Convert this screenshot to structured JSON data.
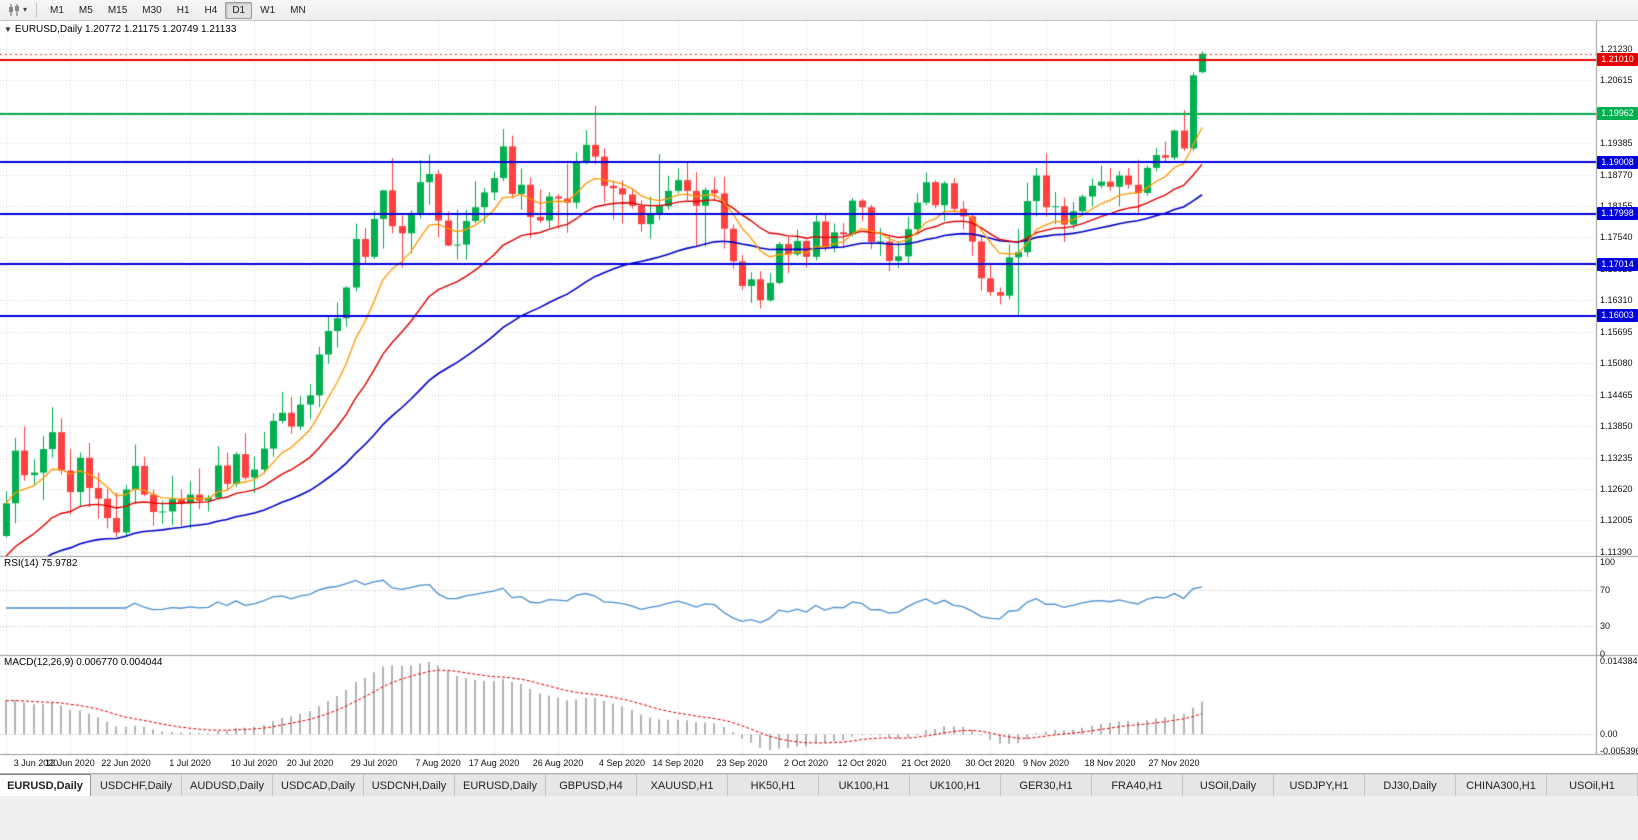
{
  "toolbar": {
    "timeframes": [
      "M1",
      "M5",
      "M15",
      "M30",
      "H1",
      "H4",
      "D1",
      "W1",
      "MN"
    ],
    "active_timeframe": "D1"
  },
  "main_chart": {
    "title": "EURUSD,Daily",
    "ohlc": "1.20772 1.21175 1.20749 1.21133",
    "open": "1.20772",
    "high": "1.21175",
    "low": "1.20749",
    "close": "1.21133"
  },
  "rsi_pane": {
    "label": "RSI(14)",
    "value": "75.9782",
    "scale": [
      "100",
      "70",
      "30",
      "0"
    ]
  },
  "macd_pane": {
    "label": "MACD(12,26,9)",
    "value": "0.006770 0.004044",
    "scale": [
      "0.014384",
      "0.00",
      "-0.005396"
    ]
  },
  "price_axis": {
    "ticks": [
      "1.21230",
      "1.20615",
      "1.20000",
      "1.19385",
      "1.18770",
      "1.18155",
      "1.17540",
      "1.16925",
      "1.16310",
      "1.15695",
      "1.15080",
      "1.14465",
      "1.13850",
      "1.13235",
      "1.12620",
      "1.12005",
      "1.11390"
    ]
  },
  "date_axis": {
    "labels": [
      "3 Jun 2020",
      "12 Jun 2020",
      "22 Jun 2020",
      "1 Jul 2020",
      "10 Jul 2020",
      "20 Jul 2020",
      "29 Jul 2020",
      "7 Aug 2020",
      "17 Aug 2020",
      "26 Aug 2020",
      "4 Sep 2020",
      "14 Sep 2020",
      "23 Sep 2020",
      "2 Oct 2020",
      "12 Oct 2020",
      "21 Oct 2020",
      "30 Oct 2020",
      "9 Nov 2020",
      "18 Nov 2020",
      "27 Nov 2020"
    ]
  },
  "levels": [
    {
      "label": "1.21010",
      "value": 1.2101,
      "color": "#e80000"
    },
    {
      "label": "1.19962",
      "value": 1.19962,
      "color": "#00b050"
    },
    {
      "label": "1.19008",
      "value": 1.19008,
      "color": "#0000dd"
    },
    {
      "label": "1.17998",
      "value": 1.17998,
      "color": "#0000dd"
    },
    {
      "label": "1.17014",
      "value": 1.17014,
      "color": "#0000dd"
    },
    {
      "label": "1.16003",
      "value": 1.16003,
      "color": "#0000dd"
    }
  ],
  "tabs": [
    {
      "label": "EURUSD,Daily",
      "active": true
    },
    {
      "label": "USDCHF,Daily"
    },
    {
      "label": "AUDUSD,Daily"
    },
    {
      "label": "USDCAD,Daily"
    },
    {
      "label": "USDCNH,Daily"
    },
    {
      "label": "EURUSD,Daily"
    },
    {
      "label": "GBPUSD,H4"
    },
    {
      "label": "XAUUSD,H1"
    },
    {
      "label": "HK50,H1"
    },
    {
      "label": "UK100,H1"
    },
    {
      "label": "UK100,H1"
    },
    {
      "label": "GER30,H1"
    },
    {
      "label": "FRA40,H1"
    },
    {
      "label": "USOil,Daily"
    },
    {
      "label": "USDJPY,H1"
    },
    {
      "label": "DJ30,Daily"
    },
    {
      "label": "CHINA300,H1"
    },
    {
      "label": "USOil,H1"
    }
  ],
  "colors": {
    "bull": "#00b050",
    "bear": "#ff4040",
    "ma_fast": "#ff9900",
    "ma_mid": "#e00000",
    "ma_slow": "#0000cc",
    "rsi_line": "#4d8fd1",
    "macd_hist": "#b4b4b4",
    "macd_signal": "#e00000",
    "grid": "#d8d8d8",
    "pane_border": "#9a9a9a",
    "bid": "#ff3030"
  },
  "chart_data": {
    "type": "candlestick",
    "symbol": "EURUSD",
    "timeframe": "Daily",
    "last_ohlc": {
      "open": 1.20772,
      "high": 1.21175,
      "low": 1.20749,
      "close": 1.21133
    },
    "bid": 1.21133,
    "horizontal_lines": [
      1.2101,
      1.19962,
      1.19008,
      1.17998,
      1.17014,
      1.16003
    ],
    "rsi": {
      "period": 14,
      "levels": [
        70,
        30
      ],
      "current": 75.9782
    },
    "macd": {
      "fast": 12,
      "slow": 26,
      "signal": 9,
      "current": 0.00677,
      "signal_current": 0.004044,
      "max": 0.014384,
      "min": -0.005396
    },
    "moving_averages": [
      {
        "period": 9,
        "color_key": "ma_fast",
        "seed": null
      },
      {
        "period": 21,
        "color_key": "ma_mid",
        "seed": 1.112
      },
      {
        "period": 45,
        "color_key": "ma_slow",
        "seed": 1.108
      }
    ],
    "tick_indices": [
      0,
      7,
      13,
      20,
      27,
      33,
      40,
      47,
      53,
      60,
      67,
      73,
      80,
      87,
      93,
      100,
      107,
      113,
      120,
      127
    ],
    "candles": [
      [
        1.117,
        1.1258,
        1.1167,
        1.1234
      ],
      [
        1.1234,
        1.1362,
        1.1195,
        1.1337
      ],
      [
        1.1337,
        1.1384,
        1.1278,
        1.1289
      ],
      [
        1.1289,
        1.132,
        1.1268,
        1.1294
      ],
      [
        1.1294,
        1.1366,
        1.124,
        1.134
      ],
      [
        1.134,
        1.1422,
        1.1323,
        1.1373
      ],
      [
        1.1373,
        1.14,
        1.129,
        1.1298
      ],
      [
        1.1298,
        1.134,
        1.1212,
        1.1256
      ],
      [
        1.1256,
        1.1333,
        1.1227,
        1.1323
      ],
      [
        1.1323,
        1.1352,
        1.1226,
        1.1264
      ],
      [
        1.1264,
        1.1294,
        1.1204,
        1.1243
      ],
      [
        1.1243,
        1.1262,
        1.1185,
        1.1205
      ],
      [
        1.1205,
        1.1255,
        1.1168,
        1.1177
      ],
      [
        1.1177,
        1.127,
        1.1168,
        1.1261
      ],
      [
        1.1261,
        1.1349,
        1.1232,
        1.1307
      ],
      [
        1.1307,
        1.1325,
        1.1248,
        1.1251
      ],
      [
        1.1251,
        1.1261,
        1.119,
        1.1217
      ],
      [
        1.1217,
        1.1239,
        1.1194,
        1.1218
      ],
      [
        1.1218,
        1.1288,
        1.1191,
        1.1242
      ],
      [
        1.1242,
        1.1261,
        1.1189,
        1.1234
      ],
      [
        1.1234,
        1.1277,
        1.1184,
        1.1251
      ],
      [
        1.1251,
        1.1302,
        1.1223,
        1.1239
      ],
      [
        1.1239,
        1.125,
        1.1218,
        1.1245
      ],
      [
        1.1245,
        1.1346,
        1.1241,
        1.1308
      ],
      [
        1.1308,
        1.1333,
        1.1259,
        1.1272
      ],
      [
        1.1272,
        1.1334,
        1.1266,
        1.133
      ],
      [
        1.133,
        1.1371,
        1.1279,
        1.1284
      ],
      [
        1.1284,
        1.1325,
        1.1254,
        1.13
      ],
      [
        1.13,
        1.1374,
        1.1292,
        1.1341
      ],
      [
        1.1341,
        1.141,
        1.1325,
        1.1395
      ],
      [
        1.1395,
        1.1452,
        1.139,
        1.1411
      ],
      [
        1.1411,
        1.1442,
        1.137,
        1.1384
      ],
      [
        1.1384,
        1.1444,
        1.1377,
        1.1427
      ],
      [
        1.1427,
        1.1467,
        1.1399,
        1.1445
      ],
      [
        1.1445,
        1.154,
        1.1422,
        1.1525
      ],
      [
        1.1525,
        1.1601,
        1.1507,
        1.1571
      ],
      [
        1.1571,
        1.1627,
        1.1539,
        1.1596
      ],
      [
        1.1596,
        1.1658,
        1.158,
        1.1656
      ],
      [
        1.1656,
        1.1781,
        1.1648,
        1.1751
      ],
      [
        1.1751,
        1.1773,
        1.1701,
        1.1716
      ],
      [
        1.1716,
        1.1806,
        1.1712,
        1.179
      ],
      [
        1.179,
        1.1847,
        1.1732,
        1.1846
      ],
      [
        1.1846,
        1.1909,
        1.1762,
        1.1776
      ],
      [
        1.1776,
        1.1797,
        1.1695,
        1.1762
      ],
      [
        1.1762,
        1.1807,
        1.1723,
        1.1802
      ],
      [
        1.1802,
        1.1905,
        1.1791,
        1.1862
      ],
      [
        1.1862,
        1.1916,
        1.1818,
        1.1878
      ],
      [
        1.1878,
        1.1886,
        1.1754,
        1.1787
      ],
      [
        1.1787,
        1.1805,
        1.1737,
        1.1738
      ],
      [
        1.1738,
        1.1808,
        1.1711,
        1.174
      ],
      [
        1.174,
        1.1808,
        1.171,
        1.1786
      ],
      [
        1.1786,
        1.1864,
        1.1782,
        1.1813
      ],
      [
        1.1813,
        1.1851,
        1.1781,
        1.1842
      ],
      [
        1.1842,
        1.1882,
        1.1827,
        1.187
      ],
      [
        1.187,
        1.1966,
        1.1864,
        1.1932
      ],
      [
        1.1932,
        1.1953,
        1.183,
        1.1839
      ],
      [
        1.1839,
        1.1889,
        1.1808,
        1.1857
      ],
      [
        1.1857,
        1.1871,
        1.1753,
        1.1794
      ],
      [
        1.1794,
        1.1848,
        1.1782,
        1.1787
      ],
      [
        1.1787,
        1.1843,
        1.1772,
        1.1834
      ],
      [
        1.1834,
        1.1839,
        1.1771,
        1.183
      ],
      [
        1.183,
        1.1898,
        1.1763,
        1.1822
      ],
      [
        1.1822,
        1.192,
        1.181,
        1.1903
      ],
      [
        1.1903,
        1.1964,
        1.1897,
        1.1935
      ],
      [
        1.1935,
        1.2011,
        1.1898,
        1.1912
      ],
      [
        1.1912,
        1.1928,
        1.1822,
        1.1855
      ],
      [
        1.1855,
        1.1865,
        1.1789,
        1.185
      ],
      [
        1.185,
        1.1866,
        1.1781,
        1.1838
      ],
      [
        1.1838,
        1.1848,
        1.181,
        1.1816
      ],
      [
        1.1816,
        1.1827,
        1.1765,
        1.178
      ],
      [
        1.178,
        1.1834,
        1.1752,
        1.1801
      ],
      [
        1.1801,
        1.1917,
        1.1788,
        1.1815
      ],
      [
        1.1815,
        1.1874,
        1.1808,
        1.1845
      ],
      [
        1.1845,
        1.1888,
        1.184,
        1.1866
      ],
      [
        1.1866,
        1.19,
        1.1827,
        1.1845
      ],
      [
        1.1845,
        1.1882,
        1.1737,
        1.1816
      ],
      [
        1.1816,
        1.1852,
        1.1736,
        1.1847
      ],
      [
        1.1847,
        1.1871,
        1.1827,
        1.184
      ],
      [
        1.184,
        1.1872,
        1.1732,
        1.1771
      ],
      [
        1.1771,
        1.1779,
        1.1693,
        1.1707
      ],
      [
        1.1707,
        1.172,
        1.1651,
        1.1659
      ],
      [
        1.1659,
        1.1686,
        1.1626,
        1.1672
      ],
      [
        1.1672,
        1.1688,
        1.1615,
        1.1631
      ],
      [
        1.1631,
        1.1684,
        1.1628,
        1.1665
      ],
      [
        1.1665,
        1.1745,
        1.1662,
        1.1741
      ],
      [
        1.1741,
        1.1755,
        1.1684,
        1.1721
      ],
      [
        1.1721,
        1.1769,
        1.1717,
        1.1747
      ],
      [
        1.1747,
        1.175,
        1.1695,
        1.1716
      ],
      [
        1.1716,
        1.1797,
        1.1709,
        1.1785
      ],
      [
        1.1785,
        1.1798,
        1.1727,
        1.1734
      ],
      [
        1.1734,
        1.1781,
        1.1725,
        1.1764
      ],
      [
        1.1764,
        1.1782,
        1.1733,
        1.176
      ],
      [
        1.176,
        1.1831,
        1.1756,
        1.1826
      ],
      [
        1.1826,
        1.1829,
        1.1786,
        1.1813
      ],
      [
        1.1813,
        1.1818,
        1.1731,
        1.1745
      ],
      [
        1.1745,
        1.1772,
        1.1718,
        1.1746
      ],
      [
        1.1746,
        1.1758,
        1.1688,
        1.1708
      ],
      [
        1.1708,
        1.1746,
        1.1694,
        1.1717
      ],
      [
        1.1717,
        1.1794,
        1.1703,
        1.177
      ],
      [
        1.177,
        1.184,
        1.176,
        1.1822
      ],
      [
        1.1822,
        1.1881,
        1.1817,
        1.1862
      ],
      [
        1.1862,
        1.1866,
        1.1811,
        1.1817
      ],
      [
        1.1817,
        1.1864,
        1.1786,
        1.186
      ],
      [
        1.186,
        1.187,
        1.1803,
        1.181
      ],
      [
        1.181,
        1.1825,
        1.177,
        1.1795
      ],
      [
        1.1795,
        1.18,
        1.1718,
        1.1746
      ],
      [
        1.1746,
        1.1759,
        1.165,
        1.1674
      ],
      [
        1.1674,
        1.1704,
        1.164,
        1.1647
      ],
      [
        1.1647,
        1.1656,
        1.1623,
        1.164
      ],
      [
        1.164,
        1.174,
        1.1633,
        1.1715
      ],
      [
        1.1715,
        1.1771,
        1.1602,
        1.1725
      ],
      [
        1.1725,
        1.1861,
        1.1716,
        1.1825
      ],
      [
        1.1825,
        1.189,
        1.1795,
        1.1875
      ],
      [
        1.1875,
        1.1918,
        1.1795,
        1.1813
      ],
      [
        1.1813,
        1.1843,
        1.178,
        1.1815
      ],
      [
        1.1815,
        1.1832,
        1.1745,
        1.1779
      ],
      [
        1.1779,
        1.1823,
        1.177,
        1.1805
      ],
      [
        1.1805,
        1.1838,
        1.1799,
        1.1834
      ],
      [
        1.1834,
        1.1869,
        1.1814,
        1.1855
      ],
      [
        1.1855,
        1.1894,
        1.185,
        1.1863
      ],
      [
        1.1863,
        1.189,
        1.1845,
        1.1853
      ],
      [
        1.1853,
        1.1884,
        1.1815,
        1.1875
      ],
      [
        1.1875,
        1.189,
        1.1849,
        1.1857
      ],
      [
        1.1857,
        1.1906,
        1.1799,
        1.1841
      ],
      [
        1.1841,
        1.1895,
        1.1836,
        1.189
      ],
      [
        1.189,
        1.1929,
        1.1883,
        1.1915
      ],
      [
        1.1915,
        1.1941,
        1.1903,
        1.191
      ],
      [
        1.191,
        1.1964,
        1.1905,
        1.1963
      ],
      [
        1.1963,
        1.2003,
        1.1923,
        1.1928
      ],
      [
        1.1928,
        1.2077,
        1.1923,
        1.2071
      ],
      [
        1.20772,
        1.21175,
        1.20749,
        1.21133
      ]
    ]
  }
}
